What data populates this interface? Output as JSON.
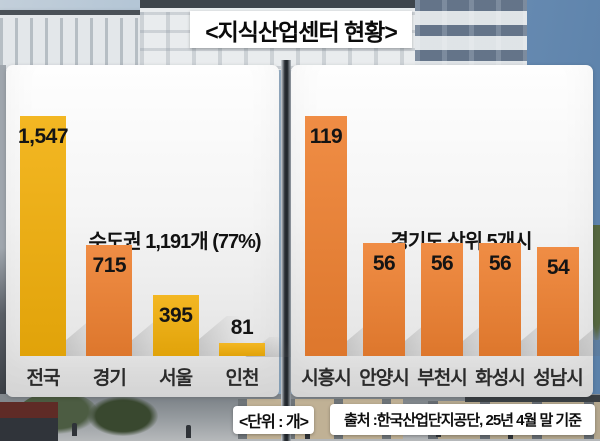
{
  "title": "<지식산업센터 현황>",
  "footer": {
    "unit": "<단위 : 개>",
    "source": "출처 :한국산업단지공단, 25년 4월 말 기준"
  },
  "colors": {
    "bar_yellow": "#F2AF0A",
    "bar_orange": "#EE8030",
    "value_text": "#141414",
    "category_text": "#2B2B2B",
    "panel_top": "#FEFEFE",
    "panel_bottom": "#DFDFDF",
    "sky_light": "#B7C8D8",
    "sky_deep": "#5E83AB"
  },
  "chart_data": [
    {
      "type": "bar",
      "annotation": "수도권 1,191개 (77%)",
      "categories": [
        "전국",
        "경기",
        "서울",
        "인천"
      ],
      "values": [
        1547,
        715,
        395,
        81
      ],
      "value_labels": [
        "1,547",
        "715",
        "395",
        "81"
      ],
      "bar_colors": [
        "#F2AF0A",
        "#EE8030",
        "#F2AF0A",
        "#F2AF0A"
      ],
      "ylim": [
        0,
        1547
      ],
      "unit": "개",
      "legend": "none",
      "grid": false
    },
    {
      "type": "bar",
      "annotation": "경기도 상위 5개시",
      "categories": [
        "시흥시",
        "안양시",
        "부천시",
        "화성시",
        "성남시"
      ],
      "values": [
        119,
        56,
        56,
        56,
        54
      ],
      "value_labels": [
        "119",
        "56",
        "56",
        "56",
        "54"
      ],
      "bar_colors": [
        "#EE8030",
        "#EE8030",
        "#EE8030",
        "#EE8030",
        "#EE8030"
      ],
      "ylim": [
        0,
        119
      ],
      "unit": "개",
      "legend": "none",
      "grid": false
    }
  ]
}
